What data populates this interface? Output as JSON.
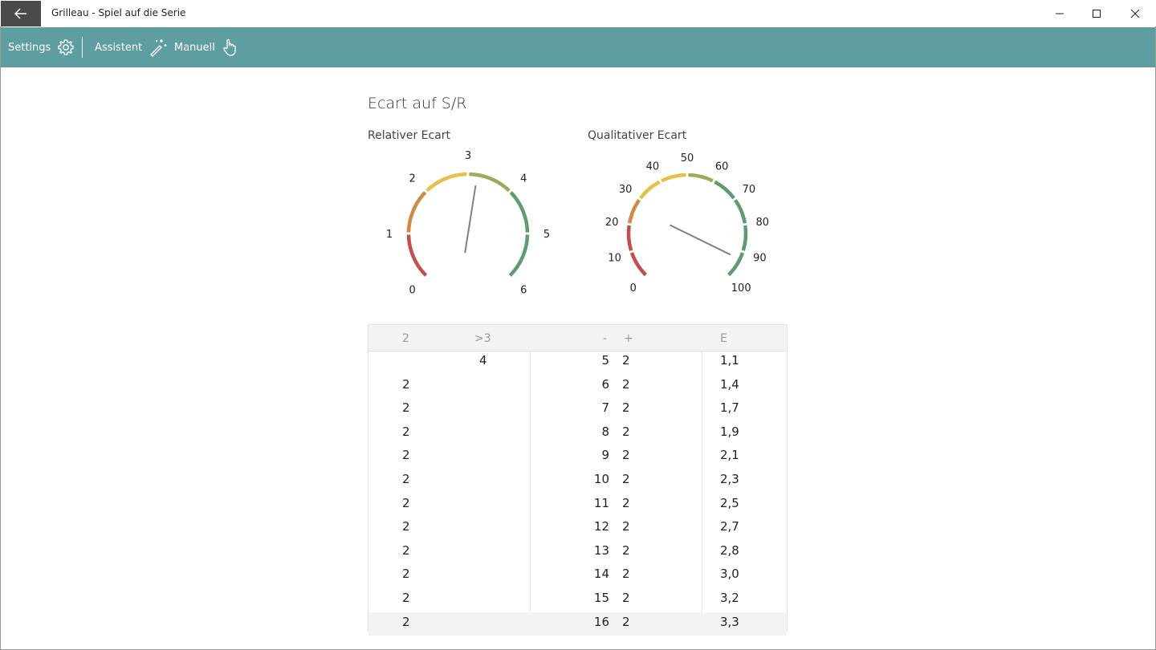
{
  "window": {
    "title": "Grilleau - Spiel auf die Serie",
    "controls": [
      "minimize",
      "maximize",
      "close"
    ]
  },
  "toolbar": {
    "settings_label": "Settings",
    "assistent_label": "Assistent",
    "manuell_label": "Manuell",
    "accent_color": "#5f9ea0"
  },
  "section": {
    "title": "Ecart auf S/R"
  },
  "gauges": {
    "relative": {
      "title": "Relativer Ecart",
      "ticks": [
        "0",
        "1",
        "2",
        "3",
        "4",
        "5",
        "6"
      ],
      "min": 0,
      "max": 6,
      "value": 3.2
    },
    "qualitative": {
      "title": "Qualitativer Ecart",
      "ticks": [
        "0",
        "10",
        "20",
        "30",
        "40",
        "50",
        "60",
        "70",
        "80",
        "90",
        "100"
      ],
      "min": 0,
      "max": 100,
      "value": 93
    },
    "colors": {
      "red": "#c0504d",
      "orange": "#d08a45",
      "yellow": "#e5c04a",
      "olive": "#9bab5c",
      "green": "#5e9c6e",
      "needle": "#808080"
    }
  },
  "table": {
    "headers": [
      "2",
      ">3",
      "-",
      "+",
      "E"
    ],
    "rows": [
      [
        "",
        "4",
        "5",
        "2",
        "1,1"
      ],
      [
        "2",
        "",
        "6",
        "2",
        "1,4"
      ],
      [
        "2",
        "",
        "7",
        "2",
        "1,7"
      ],
      [
        "2",
        "",
        "8",
        "2",
        "1,9"
      ],
      [
        "2",
        "",
        "9",
        "2",
        "2,1"
      ],
      [
        "2",
        "",
        "10",
        "2",
        "2,3"
      ],
      [
        "2",
        "",
        "11",
        "2",
        "2,5"
      ],
      [
        "2",
        "",
        "12",
        "2",
        "2,7"
      ],
      [
        "2",
        "",
        "13",
        "2",
        "2,8"
      ],
      [
        "2",
        "",
        "14",
        "2",
        "3,0"
      ],
      [
        "2",
        "",
        "15",
        "2",
        "3,2"
      ],
      [
        "2",
        "",
        "16",
        "2",
        "3,3"
      ]
    ]
  }
}
